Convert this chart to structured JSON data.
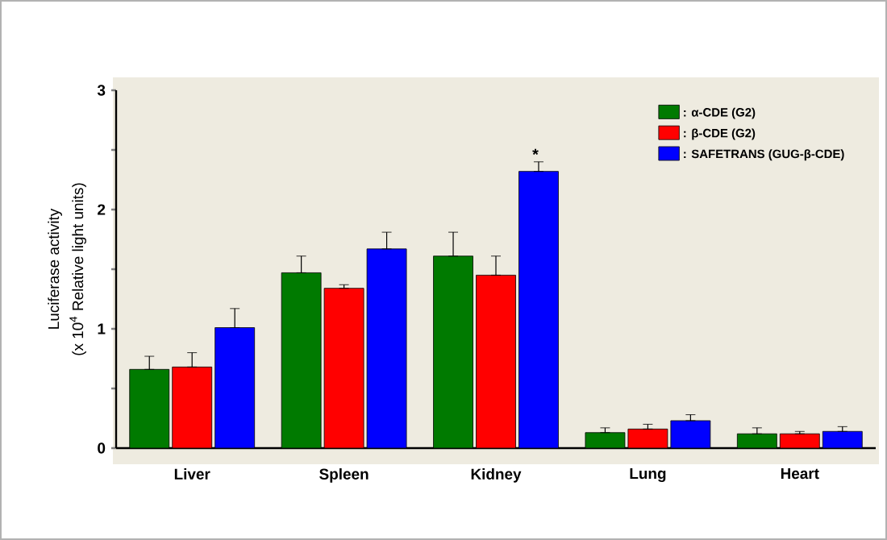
{
  "chart_data": {
    "type": "bar",
    "ylabel": "Luciferase activity",
    "categories": [
      "Liver",
      "Spleen",
      "Kidney",
      "Lung",
      "Heart"
    ],
    "series": [
      {
        "name": ": α-CDE (G2)",
        "color": "#007a00",
        "values": [
          0.66,
          1.47,
          1.61,
          0.13,
          0.12
        ],
        "errors": [
          [
            0.66,
            0.77
          ],
          [
            1.47,
            1.61
          ],
          [
            1.61,
            1.81
          ],
          [
            0.13,
            0.17
          ],
          [
            0.12,
            0.17
          ]
        ]
      },
      {
        "name": ": β-CDE (G2)",
        "color": "#ff0000",
        "values": [
          0.68,
          1.34,
          1.45,
          0.16,
          0.12
        ],
        "errors": [
          [
            0.68,
            0.8
          ],
          [
            1.34,
            1.37
          ],
          [
            1.45,
            1.61
          ],
          [
            0.16,
            0.2
          ],
          [
            0.12,
            0.14
          ]
        ]
      },
      {
        "name": ": SAFETRANS (GUG-β-CDE)",
        "color": "#0000ff",
        "values": [
          1.01,
          1.67,
          2.32,
          0.23,
          0.14
        ],
        "errors": [
          [
            1.01,
            1.17
          ],
          [
            1.67,
            1.81
          ],
          [
            2.32,
            2.4
          ],
          [
            0.23,
            0.28
          ],
          [
            0.14,
            0.18
          ]
        ]
      }
    ],
    "ylim": [
      0,
      3
    ],
    "yticks": [
      0,
      {
        "value": 0.5,
        "label": null
      },
      1,
      {
        "value": 1.5,
        "label": null
      },
      2,
      {
        "value": 2.5,
        "label": null
      },
      3
    ],
    "annotations": [
      "(x 10$^{4}$ Relative light units)",
      "*"
    ],
    "legend": "top right",
    "grid": false
  }
}
